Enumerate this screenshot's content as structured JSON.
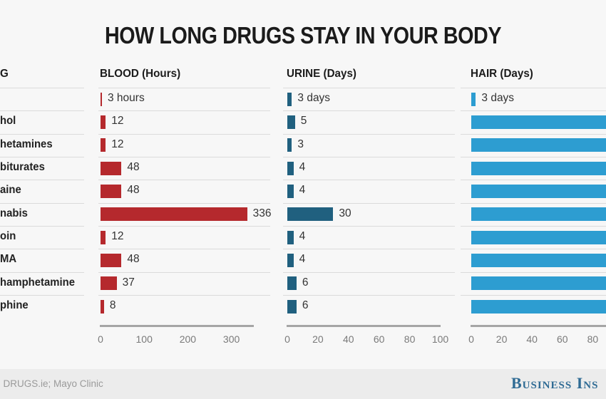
{
  "title": "HOW LONG DRUGS STAY IN YOUR BODY",
  "row_label_column": {
    "header": "G",
    "labels": [
      "",
      "hol",
      "hetamines",
      "biturates",
      "aine",
      "nabis",
      "oin",
      "MA",
      "hamphetamine",
      "phine"
    ]
  },
  "chart_data": [
    {
      "type": "bar",
      "title": "BLOOD (Hours)",
      "orientation": "horizontal",
      "categories": [
        "",
        "hol",
        "hetamines",
        "biturates",
        "aine",
        "nabis",
        "oin",
        "MA",
        "hamphetamine",
        "phine"
      ],
      "values": [
        3,
        12,
        12,
        48,
        48,
        336,
        12,
        48,
        37,
        8
      ],
      "value_labels": [
        "3 hours",
        "12",
        "12",
        "48",
        "48",
        "336",
        "12",
        "48",
        "37",
        "8"
      ],
      "bar_color": "#b5292d",
      "xlim": [
        0,
        350
      ],
      "ticks": [
        0,
        100,
        200,
        300
      ],
      "grid": false,
      "legend": "none"
    },
    {
      "type": "bar",
      "title": "URINE (Days)",
      "orientation": "horizontal",
      "categories": [
        "",
        "hol",
        "hetamines",
        "biturates",
        "aine",
        "nabis",
        "oin",
        "MA",
        "hamphetamine",
        "phine"
      ],
      "values": [
        3,
        5,
        3,
        4,
        4,
        30,
        4,
        4,
        6,
        6
      ],
      "value_labels": [
        "3 days",
        "5",
        "3",
        "4",
        "4",
        "30",
        "4",
        "4",
        "6",
        "6"
      ],
      "bar_color": "#20607f",
      "xlim": [
        0,
        100
      ],
      "ticks": [
        0,
        20,
        40,
        60,
        80,
        100
      ],
      "grid": false,
      "legend": "none"
    },
    {
      "type": "bar",
      "title": "HAIR (Days)",
      "orientation": "horizontal",
      "categories": [
        "",
        "hol",
        "hetamines",
        "biturates",
        "aine",
        "nabis",
        "oin",
        "MA",
        "hamphetamine",
        "phine"
      ],
      "values": [
        3,
        90,
        90,
        90,
        90,
        90,
        90,
        90,
        90,
        90
      ],
      "value_labels": [
        "3 days",
        "",
        "",
        "",
        "",
        "",
        "",
        "",
        "",
        ""
      ],
      "bar_color": "#2d9dd1",
      "xlim": [
        0,
        89
      ],
      "ticks": [
        0,
        20,
        40,
        60,
        80
      ],
      "grid": false,
      "legend": "none"
    }
  ],
  "footer": {
    "source_text": ": DRUGS.ie; Mayo Clinic",
    "logo_words": [
      "Business",
      "Ins"
    ]
  },
  "colors": {
    "background": "#f7f7f7",
    "footer_band": "#ececec",
    "blood_bar": "#b5292d",
    "urine_bar": "#20607f",
    "hair_bar": "#2d9dd1",
    "separator": "#dbdbdb",
    "axis_line": "#a5a5a5",
    "tick_text": "#7a7a7a",
    "title_text": "#1b1b1b",
    "logo_text": "#2f6b94"
  }
}
